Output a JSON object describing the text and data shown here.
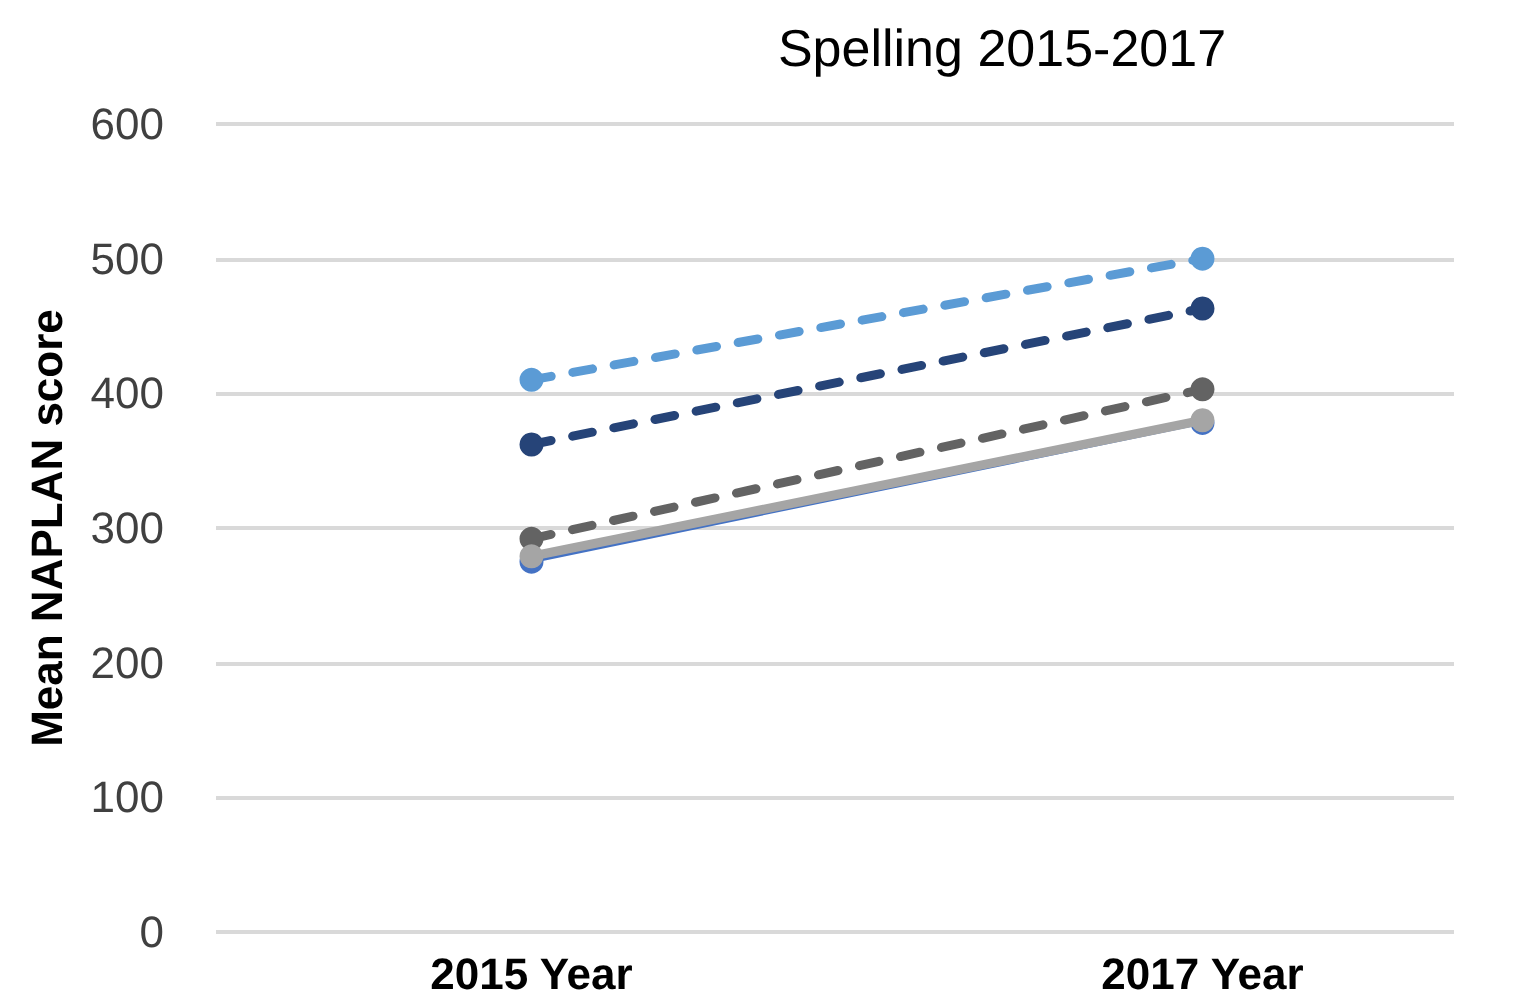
{
  "chart_data": {
    "type": "line",
    "title": "Spelling 2015-2017",
    "ylabel": "Mean NAPLAN score",
    "categories": [
      "2015 Year",
      "2017 Year"
    ],
    "series": [
      {
        "color": "#4472c4",
        "values": [
          275,
          378
        ],
        "line_style": "solid"
      },
      {
        "color": "#5b9bd5",
        "values": [
          410,
          500
        ],
        "line_style": "dashed"
      },
      {
        "color": "#264478",
        "values": [
          362,
          463
        ],
        "line_style": "dashed"
      },
      {
        "color": "#636363",
        "values": [
          292,
          403
        ],
        "line_style": "dashed"
      },
      {
        "color": "#a5a5a5",
        "values": [
          279,
          380
        ],
        "line_style": "solid"
      }
    ],
    "ylim": [
      0,
      600
    ],
    "yticks": [
      0,
      100,
      200,
      300,
      400,
      500,
      600
    ],
    "grid": "y",
    "marker": "circle"
  }
}
